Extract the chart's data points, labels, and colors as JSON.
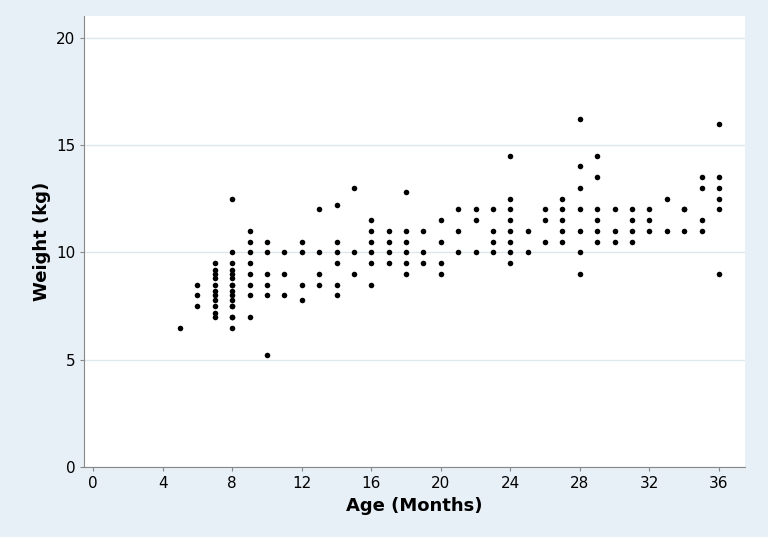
{
  "title": "",
  "xlabel": "Age (Months)",
  "ylabel": "Weight (kg)",
  "background_color": "#e8f0f7",
  "plot_background": "#ffffff",
  "xlim": [
    -0.5,
    37.5
  ],
  "ylim": [
    0,
    21
  ],
  "xticks": [
    0,
    4,
    8,
    12,
    16,
    20,
    24,
    28,
    32,
    36
  ],
  "yticks": [
    0,
    5,
    10,
    15,
    20
  ],
  "marker_color": "#000000",
  "marker_size": 4,
  "grid_color": "#dce8f0",
  "tick_label_color": "#000000",
  "axis_label_color": "#000000",
  "axis_label_fontsize": 13,
  "tick_label_fontsize": 11,
  "age": [
    5,
    6,
    6,
    6,
    7,
    7,
    7,
    7,
    7,
    7,
    7,
    7,
    7,
    7,
    7,
    8,
    8,
    8,
    8,
    8,
    8,
    8,
    8,
    8,
    8,
    8,
    8,
    8,
    8,
    8,
    8,
    9,
    9,
    9,
    9,
    9,
    9,
    9,
    9,
    10,
    10,
    10,
    10,
    10,
    10,
    11,
    11,
    11,
    12,
    12,
    12,
    12,
    13,
    13,
    13,
    13,
    14,
    14,
    14,
    14,
    14,
    14,
    15,
    15,
    15,
    16,
    16,
    16,
    16,
    16,
    16,
    17,
    17,
    17,
    17,
    18,
    18,
    18,
    18,
    18,
    18,
    19,
    19,
    19,
    20,
    20,
    20,
    20,
    21,
    21,
    21,
    22,
    22,
    22,
    23,
    23,
    23,
    23,
    24,
    24,
    24,
    24,
    24,
    24,
    24,
    24,
    25,
    25,
    26,
    26,
    26,
    27,
    27,
    27,
    27,
    27,
    28,
    28,
    28,
    28,
    28,
    28,
    28,
    29,
    29,
    29,
    29,
    29,
    29,
    30,
    30,
    30,
    31,
    31,
    31,
    31,
    32,
    32,
    32,
    33,
    33,
    34,
    34,
    34,
    35,
    35,
    35,
    35,
    36,
    36,
    36,
    36,
    36,
    36
  ],
  "weight": [
    6.5,
    7.5,
    8.0,
    8.5,
    7.0,
    7.2,
    7.5,
    7.8,
    8.0,
    8.2,
    8.5,
    8.8,
    9.0,
    9.2,
    9.5,
    6.5,
    7.0,
    7.0,
    7.5,
    7.5,
    7.8,
    8.0,
    8.2,
    8.5,
    8.5,
    8.8,
    9.0,
    9.2,
    9.5,
    10.0,
    12.5,
    7.0,
    8.0,
    8.5,
    9.0,
    9.5,
    10.0,
    10.5,
    11.0,
    5.2,
    8.0,
    8.5,
    9.0,
    10.0,
    10.5,
    8.0,
    9.0,
    10.0,
    7.8,
    8.5,
    10.0,
    10.5,
    8.5,
    9.0,
    10.0,
    12.0,
    8.0,
    8.5,
    9.5,
    10.0,
    10.5,
    12.2,
    9.0,
    10.0,
    13.0,
    8.5,
    9.5,
    10.0,
    10.5,
    11.0,
    11.5,
    9.5,
    10.0,
    10.5,
    11.0,
    9.0,
    9.5,
    10.0,
    10.5,
    11.0,
    12.8,
    9.5,
    10.0,
    11.0,
    9.0,
    9.5,
    10.5,
    11.5,
    10.0,
    11.0,
    12.0,
    10.0,
    11.5,
    12.0,
    10.0,
    10.5,
    11.0,
    12.0,
    9.5,
    10.0,
    10.5,
    11.0,
    11.5,
    12.0,
    12.5,
    14.5,
    10.0,
    11.0,
    10.5,
    11.5,
    12.0,
    10.5,
    11.0,
    11.5,
    12.0,
    12.5,
    9.0,
    10.0,
    11.0,
    12.0,
    13.0,
    14.0,
    16.2,
    10.5,
    11.0,
    11.5,
    12.0,
    13.5,
    14.5,
    10.5,
    11.0,
    12.0,
    10.5,
    11.0,
    11.5,
    12.0,
    11.0,
    11.5,
    12.0,
    12.5,
    11.0,
    12.0,
    11.0,
    12.0,
    13.0,
    13.5,
    11.0,
    11.5,
    12.0,
    12.5,
    13.0,
    13.5,
    9.0,
    16.0
  ]
}
